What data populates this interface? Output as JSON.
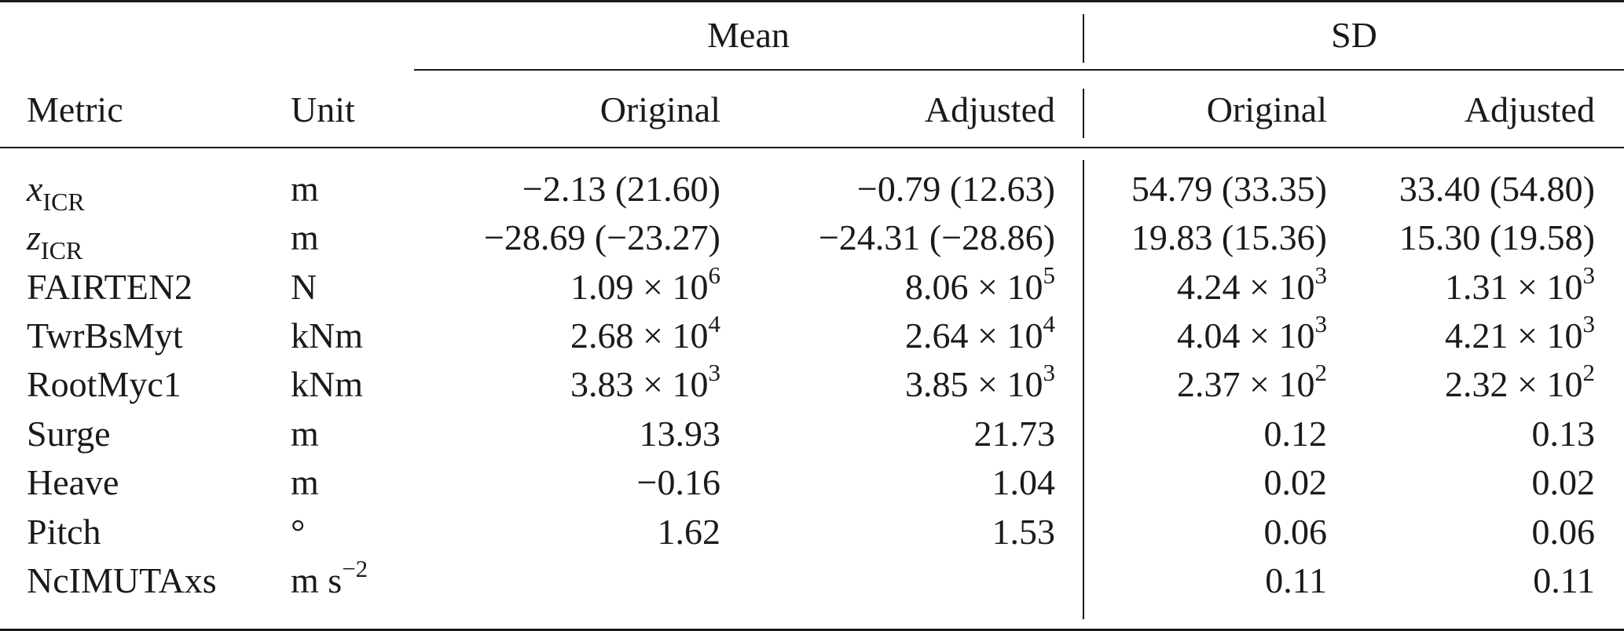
{
  "groups": {
    "mean": "Mean",
    "sd": "SD"
  },
  "headers": {
    "metric": "Metric",
    "unit": "Unit",
    "mean_original": "Original",
    "mean_adjusted": "Adjusted",
    "sd_original": "Original",
    "sd_adjusted": "Adjusted"
  },
  "rows": [
    {
      "metric": {
        "base": "x",
        "sub": "ICR"
      },
      "unit": {
        "base": "m"
      },
      "mean_original": {
        "text": "−2.13 (21.60)"
      },
      "mean_adjusted": {
        "text": "−0.79 (12.63)"
      },
      "sd_original": {
        "text": "54.79 (33.35)"
      },
      "sd_adjusted": {
        "text": "33.40 (54.80)"
      }
    },
    {
      "metric": {
        "base": "z",
        "sub": "ICR"
      },
      "unit": {
        "base": "m"
      },
      "mean_original": {
        "text": "−28.69 (−23.27)"
      },
      "mean_adjusted": {
        "text": "−24.31 (−28.86)"
      },
      "sd_original": {
        "text": "19.83 (15.36)"
      },
      "sd_adjusted": {
        "text": "15.30 (19.58)"
      }
    },
    {
      "metric": {
        "base": "FAIRTEN2"
      },
      "unit": {
        "base": "N"
      },
      "mean_original": {
        "text": "1.09 × 10",
        "sup": "6"
      },
      "mean_adjusted": {
        "text": "8.06 × 10",
        "sup": "5"
      },
      "sd_original": {
        "text": "4.24 × 10",
        "sup": "3"
      },
      "sd_adjusted": {
        "text": "1.31 × 10",
        "sup": "3"
      }
    },
    {
      "metric": {
        "base": "TwrBsMyt"
      },
      "unit": {
        "base": "kNm"
      },
      "mean_original": {
        "text": "2.68 × 10",
        "sup": "4"
      },
      "mean_adjusted": {
        "text": "2.64 × 10",
        "sup": "4"
      },
      "sd_original": {
        "text": "4.04 × 10",
        "sup": "3"
      },
      "sd_adjusted": {
        "text": "4.21 × 10",
        "sup": "3"
      }
    },
    {
      "metric": {
        "base": "RootMyc1"
      },
      "unit": {
        "base": "kNm"
      },
      "mean_original": {
        "text": "3.83 × 10",
        "sup": "3"
      },
      "mean_adjusted": {
        "text": "3.85 × 10",
        "sup": "3"
      },
      "sd_original": {
        "text": "2.37 × 10",
        "sup": "2"
      },
      "sd_adjusted": {
        "text": "2.32 × 10",
        "sup": "2"
      }
    },
    {
      "metric": {
        "base": "Surge"
      },
      "unit": {
        "base": "m"
      },
      "mean_original": {
        "text": "13.93"
      },
      "mean_adjusted": {
        "text": "21.73"
      },
      "sd_original": {
        "text": "0.12"
      },
      "sd_adjusted": {
        "text": "0.13"
      }
    },
    {
      "metric": {
        "base": "Heave"
      },
      "unit": {
        "base": "m"
      },
      "mean_original": {
        "text": "−0.16"
      },
      "mean_adjusted": {
        "text": "1.04"
      },
      "sd_original": {
        "text": "0.02"
      },
      "sd_adjusted": {
        "text": "0.02"
      }
    },
    {
      "metric": {
        "base": "Pitch"
      },
      "unit": {
        "base": "°"
      },
      "mean_original": {
        "text": "1.62"
      },
      "mean_adjusted": {
        "text": "1.53"
      },
      "sd_original": {
        "text": "0.06"
      },
      "sd_adjusted": {
        "text": "0.06"
      }
    },
    {
      "metric": {
        "base": "NcIMUTAxs"
      },
      "unit": {
        "base": "m s",
        "sup": "−2"
      },
      "mean_original": {
        "text": ""
      },
      "mean_adjusted": {
        "text": ""
      },
      "sd_original": {
        "text": "0.11"
      },
      "sd_adjusted": {
        "text": "0.11"
      }
    }
  ]
}
